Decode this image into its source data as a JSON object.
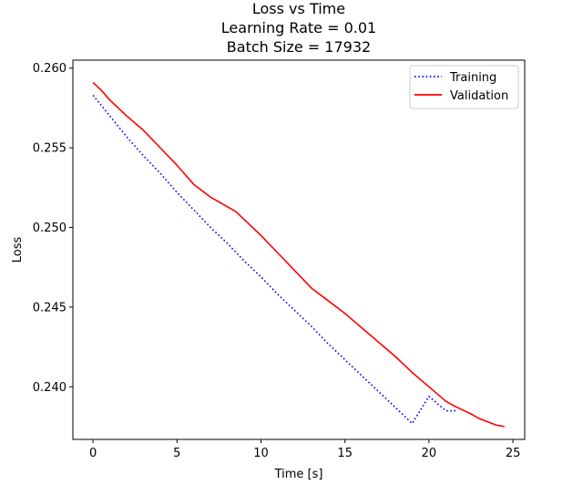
{
  "chart_data": {
    "type": "line",
    "title_lines": [
      "Loss vs Time",
      "Learning Rate = 0.01",
      "Batch Size = 17932"
    ],
    "xlabel": "Time [s]",
    "ylabel": "Loss",
    "xlim": [
      -1.2,
      25.7
    ],
    "ylim": [
      0.2367,
      0.2605
    ],
    "xticks": [
      0,
      5,
      10,
      15,
      20,
      25
    ],
    "xtick_labels": [
      "0",
      "5",
      "10",
      "15",
      "20",
      "25"
    ],
    "yticks": [
      0.24,
      0.245,
      0.25,
      0.255,
      0.26
    ],
    "ytick_labels": [
      "0.240",
      "0.245",
      "0.250",
      "0.255",
      "0.260"
    ],
    "grid": false,
    "legend_position": "top-right",
    "series": [
      {
        "name": "Training",
        "color": "#0000ff",
        "style": "dotted",
        "points": [
          [
            0,
            0.2583
          ],
          [
            1,
            0.257
          ],
          [
            2,
            0.2557
          ],
          [
            3,
            0.2545
          ],
          [
            4,
            0.2534
          ],
          [
            5,
            0.2522
          ],
          [
            6,
            0.2511
          ],
          [
            7,
            0.25
          ],
          [
            8,
            0.249
          ],
          [
            9,
            0.2479
          ],
          [
            10,
            0.2469
          ],
          [
            11,
            0.2458
          ],
          [
            12,
            0.2448
          ],
          [
            13,
            0.2438
          ],
          [
            14,
            0.2427
          ],
          [
            15,
            0.2417
          ],
          [
            16,
            0.2407
          ],
          [
            17,
            0.2397
          ],
          [
            18,
            0.2387
          ],
          [
            19,
            0.2377
          ],
          [
            20,
            0.2394
          ],
          [
            21,
            0.2385
          ],
          [
            21.6,
            0.2385
          ]
        ]
      },
      {
        "name": "Validation",
        "color": "#ff0000",
        "style": "solid",
        "points": [
          [
            0,
            0.2591
          ],
          [
            0.5,
            0.2586
          ],
          [
            1,
            0.258
          ],
          [
            1.5,
            0.2575
          ],
          [
            2,
            0.257
          ],
          [
            3,
            0.2561
          ],
          [
            4,
            0.255
          ],
          [
            5,
            0.2539
          ],
          [
            6,
            0.2527
          ],
          [
            7,
            0.2519
          ],
          [
            8,
            0.2513
          ],
          [
            8.5,
            0.251
          ],
          [
            9,
            0.2505
          ],
          [
            10,
            0.2495
          ],
          [
            11,
            0.2484
          ],
          [
            12,
            0.2473
          ],
          [
            13,
            0.2462
          ],
          [
            14,
            0.2454
          ],
          [
            15,
            0.2446
          ],
          [
            16,
            0.2437
          ],
          [
            17,
            0.2428
          ],
          [
            18,
            0.2419
          ],
          [
            19,
            0.2409
          ],
          [
            20,
            0.24
          ],
          [
            21,
            0.2391
          ],
          [
            21.5,
            0.2388
          ],
          [
            22.5,
            0.2383
          ],
          [
            23,
            0.238
          ],
          [
            24,
            0.2376
          ],
          [
            24.5,
            0.2375
          ]
        ]
      }
    ]
  }
}
